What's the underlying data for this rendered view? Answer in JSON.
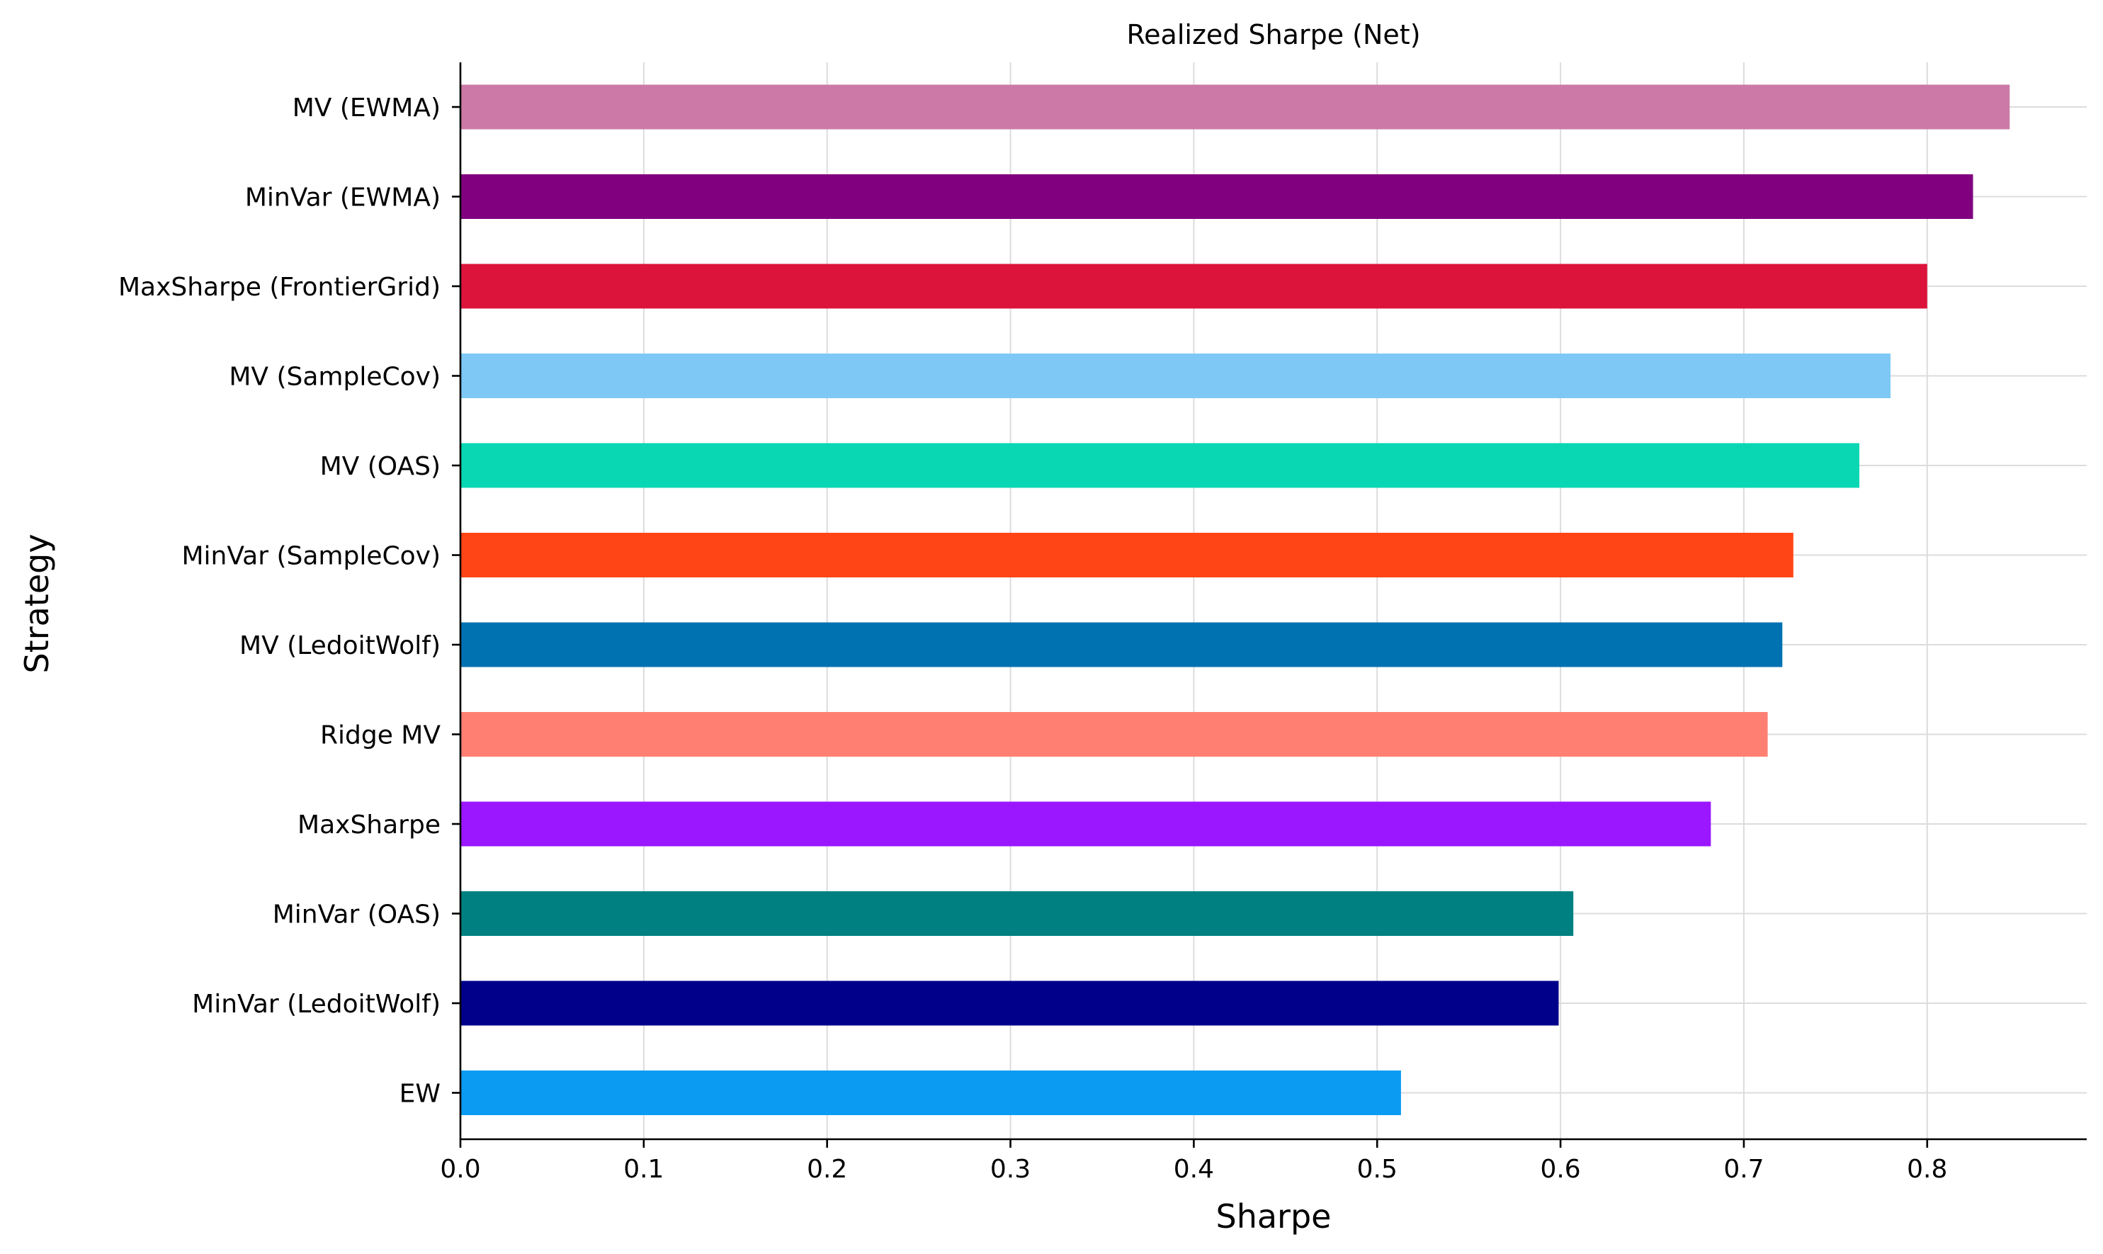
{
  "chart_data": {
    "type": "bar",
    "orientation": "horizontal",
    "title": "Realized Sharpe (Net)",
    "xlabel": "Sharpe",
    "ylabel": "Strategy",
    "xlim": [
      0.0,
      0.887
    ],
    "xticks": [
      "0.0",
      "0.1",
      "0.2",
      "0.3",
      "0.4",
      "0.5",
      "0.6",
      "0.7",
      "0.8"
    ],
    "grid": true,
    "categories": [
      "MV (EWMA)",
      "MinVar (EWMA)",
      "MaxSharpe (FrontierGrid)",
      "MV (SampleCov)",
      "MV (OAS)",
      "MinVar (SampleCov)",
      "MV (LedoitWolf)",
      "Ridge MV",
      "MaxSharpe",
      "MinVar (OAS)",
      "MinVar (LedoitWolf)",
      "EW"
    ],
    "values": [
      0.845,
      0.825,
      0.8,
      0.78,
      0.763,
      0.727,
      0.721,
      0.713,
      0.682,
      0.607,
      0.599,
      0.513
    ],
    "colors": [
      "#cc79a7",
      "#800080",
      "#dc143c",
      "#7ec8f5",
      "#09d7b3",
      "#ff4516",
      "#0072b2",
      "#ff8073",
      "#9a17ff",
      "#008080",
      "#00008b",
      "#0b9bf2"
    ]
  }
}
